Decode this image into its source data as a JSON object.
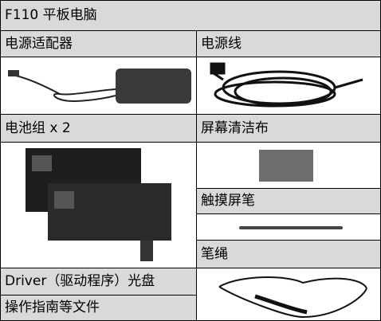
{
  "header": {
    "title": "F110 平板电脑"
  },
  "items": [
    {
      "label": "电源适配器"
    },
    {
      "label": "电源线"
    },
    {
      "label": "电池组 x 2"
    },
    {
      "label": "屏幕清洁布"
    },
    {
      "label": "触摸屏笔"
    },
    {
      "label": "笔绳"
    },
    {
      "label": "Driver（驱动程序）光盘"
    },
    {
      "label": "操作指南等文件"
    }
  ]
}
